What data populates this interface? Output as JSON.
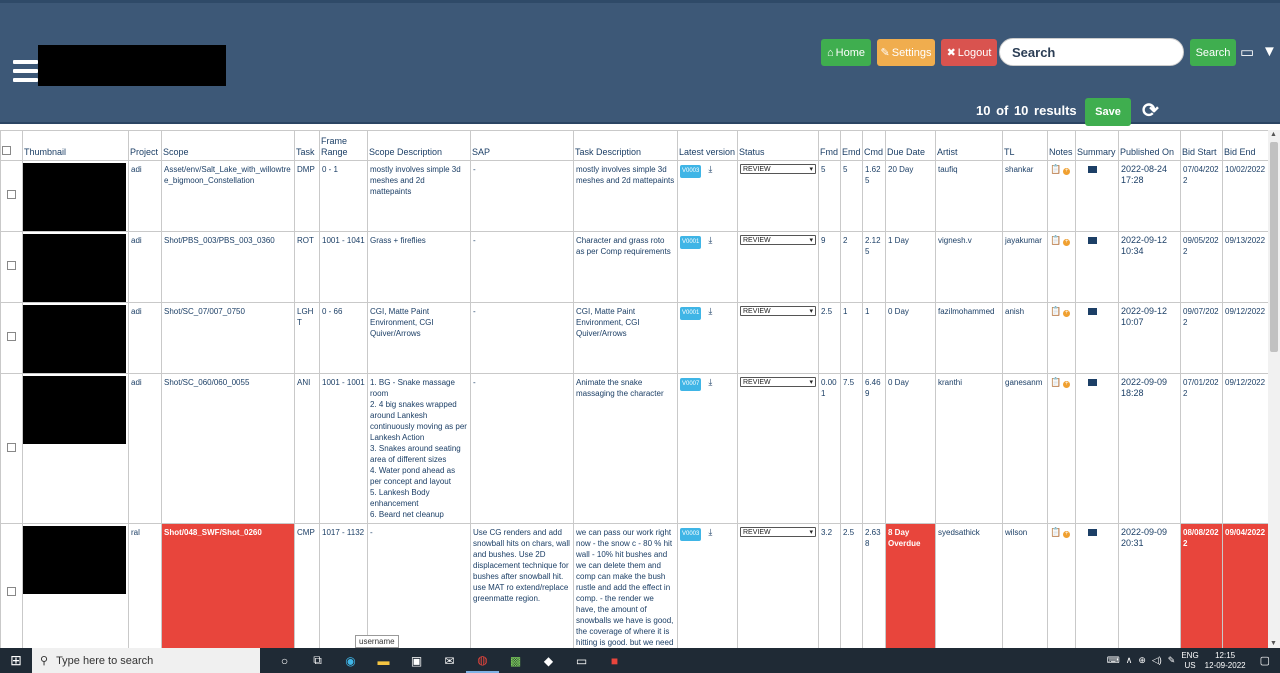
{
  "header": {
    "home_label": "Home",
    "settings_label": "Settings",
    "logout_label": "Logout",
    "search_placeholder": "Search",
    "search_button": "Search",
    "results_text": "10  of  10  results",
    "save_label": "Save"
  },
  "columns": [
    "Thumbnail",
    "Project",
    "Scope",
    "Task",
    "Frame Range",
    "Scope Description",
    "SAP",
    "Task Description",
    "Latest version",
    "Status",
    "Fmd",
    "Emd",
    "Cmd",
    "Due Date",
    "Artist",
    "TL",
    "Notes",
    "Summary",
    "Published On",
    "Bid Start",
    "Bid End"
  ],
  "rows": [
    {
      "project": "adi",
      "scope": "Asset/env/Salt_Lake_with_willowtree_bigmoon_Constellation",
      "task": "DMP",
      "frame_range": "0 - 1",
      "scope_desc": "mostly involves simple 3d meshes and 2d mattepaints",
      "sap": "-",
      "task_desc": "mostly involves simple 3d meshes and 2d mattepaints",
      "version": "V0003",
      "status": "REVIEW",
      "fmd": "5",
      "emd": "5",
      "cmd": "1.625",
      "due": "20 Day",
      "artist": "taufiq",
      "tl": "shankar",
      "published": "2022-08-24 17:28",
      "bid_start": "07/04/2022",
      "bid_end": "10/02/2022",
      "overdue": false
    },
    {
      "project": "adi",
      "scope": "Shot/PBS_003/PBS_003_0360",
      "task": "ROT",
      "frame_range": "1001 - 1041",
      "scope_desc": "Grass + fireflies",
      "sap": "-",
      "task_desc": "Character and grass roto as per Comp requirements",
      "version": "V0001",
      "status": "REVIEW",
      "fmd": "9",
      "emd": "2",
      "cmd": "2.125",
      "due": "1 Day",
      "artist": "vignesh.v",
      "tl": "jayakumar",
      "published": "2022-09-12 10:34",
      "bid_start": "09/05/2022",
      "bid_end": "09/13/2022",
      "overdue": false
    },
    {
      "project": "adi",
      "scope": "Shot/SC_07/007_0750",
      "task": "LGHT",
      "frame_range": "0 - 66",
      "scope_desc": "CGI, Matte Paint Environment, CGI Quiver/Arrows",
      "sap": "-",
      "task_desc": "CGI, Matte Paint Environment, CGI Quiver/Arrows",
      "version": "V0001",
      "status": "REVIEW",
      "fmd": "2.5",
      "emd": "1",
      "cmd": "1",
      "due": "0 Day",
      "artist": "fazilmohammed",
      "tl": "anish",
      "published": "2022-09-12 10:07",
      "bid_start": "09/07/2022",
      "bid_end": "09/12/2022",
      "overdue": false
    },
    {
      "project": "adi",
      "scope": "Shot/SC_060/060_0055",
      "task": "ANI",
      "frame_range": "1001 - 1001",
      "scope_desc": "1. BG - Snake massage room\n2. 4 big snakes wrapped around Lankesh continuously moving as per Lankesh Action\n3. Snakes around seating area of different sizes\n4. Water pond ahead as per concept and layout\n5. Lankesh Body enhancement\n6. Beard net cleanup",
      "sap": "-",
      "task_desc": "Animate the snake massaging the character",
      "version": "V0007",
      "status": "REVIEW",
      "fmd": "0.001",
      "emd": "7.5",
      "cmd": "6.469",
      "due": "0 Day",
      "artist": "kranthi",
      "tl": "ganesanm",
      "published": "2022-09-09 18:28",
      "bid_start": "07/01/2022",
      "bid_end": "09/12/2022",
      "overdue": false
    },
    {
      "project": "ral",
      "scope": "Shot/048_SWF/Shot_0260",
      "task": "CMP",
      "frame_range": "1017 - 1132",
      "scope_desc": "-",
      "sap": "Use CG renders and add snowball hits on chars, wall and bushes. Use 2D displacement technique for bushes after snowball hit. use MAT ro extend/replace greenmatte region.",
      "task_desc": "we can pass our work right now - the snow c - 80 % hit wall - 10% hit bushes and we can delete them and comp can make the bush rustle and add the effect in comp. - the render we have, the amount of snowballs we have is good, the coverage of where it is hitting is good. but we need to work on the",
      "version": "V0003",
      "status": "REVIEW",
      "fmd": "3.2",
      "emd": "2.5",
      "cmd": "2.638",
      "due": "8 Day Overdue",
      "artist": "syedsathick",
      "tl": "wilson",
      "published": "2022-09-09 20:31",
      "bid_start": "08/08/2022",
      "bid_end": "09/04/2022",
      "overdue": true
    }
  ],
  "tooltip": "username",
  "taskbar": {
    "search_placeholder": "Type here to search",
    "lang_top": "ENG",
    "lang_bottom": "US",
    "time": "12:15",
    "date": "12-09-2022"
  },
  "colors": {
    "header_bg": "#3d5877",
    "green": "#3fae4f",
    "orange": "#f0ad4e",
    "red": "#d9534f",
    "overdue": "#e8453c"
  }
}
